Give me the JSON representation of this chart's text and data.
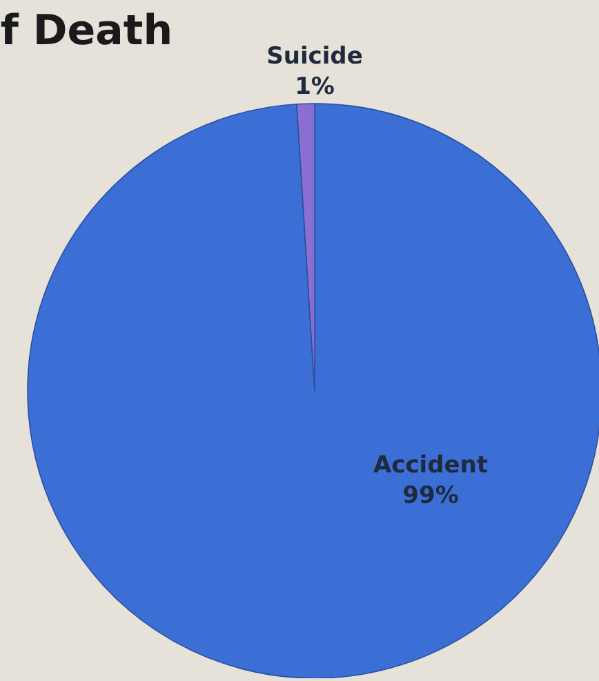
{
  "chart_data": {
    "type": "pie",
    "title": "f Death",
    "categories": [
      "Accident",
      "Suicide"
    ],
    "values": [
      99,
      1
    ],
    "colors": [
      "#3b6fd6",
      "#8a6fd0"
    ],
    "value_labels": [
      "99%",
      "1%"
    ]
  }
}
